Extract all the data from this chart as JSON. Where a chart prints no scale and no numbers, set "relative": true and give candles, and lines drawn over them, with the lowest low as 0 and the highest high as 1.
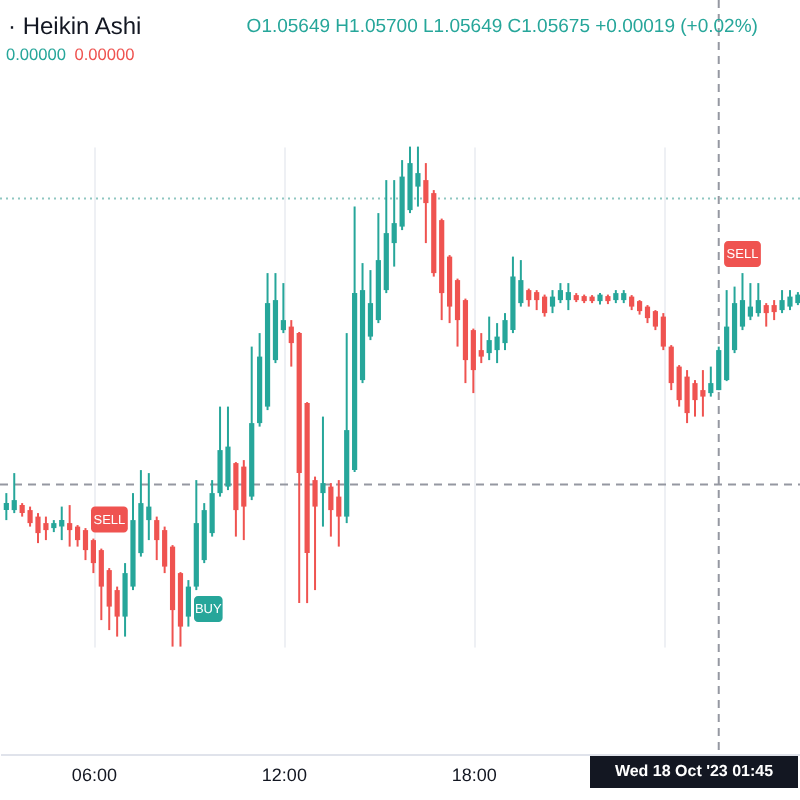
{
  "chart_data": {
    "type": "candlestick",
    "relative": true,
    "title": "· Heikin Ashi",
    "x": [
      "2023-10-17T03:15",
      "2023-10-17T03:30",
      "2023-10-17T03:45",
      "2023-10-17T04:00",
      "2023-10-17T04:15",
      "2023-10-17T04:30",
      "2023-10-17T04:45",
      "2023-10-17T05:00",
      "2023-10-17T05:15",
      "2023-10-17T05:30",
      "2023-10-17T05:45",
      "2023-10-17T06:00",
      "2023-10-17T06:15",
      "2023-10-17T06:30",
      "2023-10-17T06:45",
      "2023-10-17T07:00",
      "2023-10-17T07:15",
      "2023-10-17T07:30",
      "2023-10-17T07:45",
      "2023-10-17T08:00",
      "2023-10-17T08:15",
      "2023-10-17T08:30",
      "2023-10-17T08:45",
      "2023-10-17T09:00",
      "2023-10-17T09:15",
      "2023-10-17T09:30",
      "2023-10-17T09:45",
      "2023-10-17T10:00",
      "2023-10-17T10:15",
      "2023-10-17T10:30",
      "2023-10-17T10:45",
      "2023-10-17T11:00",
      "2023-10-17T11:15",
      "2023-10-17T11:30",
      "2023-10-17T11:45",
      "2023-10-17T12:00",
      "2023-10-17T12:15",
      "2023-10-17T12:30",
      "2023-10-17T12:45",
      "2023-10-17T13:00",
      "2023-10-17T13:15",
      "2023-10-17T13:30",
      "2023-10-17T13:45",
      "2023-10-17T14:00",
      "2023-10-17T14:15",
      "2023-10-17T14:30",
      "2023-10-17T14:45",
      "2023-10-17T15:00",
      "2023-10-17T15:15",
      "2023-10-17T15:30",
      "2023-10-17T15:45",
      "2023-10-17T16:00",
      "2023-10-17T16:15",
      "2023-10-17T16:30",
      "2023-10-17T16:45",
      "2023-10-17T17:00",
      "2023-10-17T17:15",
      "2023-10-17T17:30",
      "2023-10-17T17:45",
      "2023-10-17T18:00",
      "2023-10-17T18:15",
      "2023-10-17T18:30",
      "2023-10-17T18:45",
      "2023-10-17T19:00",
      "2023-10-17T19:15",
      "2023-10-17T19:30",
      "2023-10-17T19:45",
      "2023-10-17T20:00",
      "2023-10-17T20:15",
      "2023-10-17T20:30",
      "2023-10-17T20:45",
      "2023-10-17T21:00",
      "2023-10-17T21:15",
      "2023-10-17T21:30",
      "2023-10-17T21:45",
      "2023-10-17T22:00",
      "2023-10-17T22:15",
      "2023-10-17T22:30",
      "2023-10-17T22:45",
      "2023-10-17T23:00",
      "2023-10-17T23:15",
      "2023-10-17T23:30",
      "2023-10-17T23:45",
      "2023-10-18T00:00",
      "2023-10-18T00:15",
      "2023-10-18T00:30",
      "2023-10-18T00:45",
      "2023-10-18T01:00",
      "2023-10-18T01:15",
      "2023-10-18T01:30",
      "2023-10-18T01:45",
      "2023-10-18T02:00",
      "2023-10-18T02:15",
      "2023-10-18T02:30",
      "2023-10-18T02:45",
      "2023-10-18T03:00",
      "2023-10-18T03:15",
      "2023-10-18T03:30",
      "2023-10-18T03:45",
      "2023-10-18T04:00",
      "2023-10-18T04:15"
    ],
    "ohlc": [
      [
        0.273,
        0.307,
        0.253,
        0.287
      ],
      [
        0.273,
        0.347,
        0.267,
        0.293
      ],
      [
        0.283,
        0.287,
        0.26,
        0.267
      ],
      [
        0.273,
        0.28,
        0.24,
        0.247
      ],
      [
        0.26,
        0.267,
        0.207,
        0.227
      ],
      [
        0.247,
        0.26,
        0.213,
        0.233
      ],
      [
        0.237,
        0.253,
        0.229,
        0.247
      ],
      [
        0.24,
        0.28,
        0.213,
        0.253
      ],
      [
        0.247,
        0.283,
        0.2,
        0.233
      ],
      [
        0.24,
        0.243,
        0.2,
        0.213
      ],
      [
        0.233,
        0.237,
        0.173,
        0.193
      ],
      [
        0.213,
        0.216,
        0.147,
        0.167
      ],
      [
        0.193,
        0.196,
        0.053,
        0.12
      ],
      [
        0.153,
        0.157,
        0.033,
        0.08
      ],
      [
        0.113,
        0.12,
        0.02,
        0.06
      ],
      [
        0.06,
        0.167,
        0.02,
        0.147
      ],
      [
        0.12,
        0.307,
        0.113,
        0.253
      ],
      [
        0.187,
        0.353,
        0.18,
        0.287
      ],
      [
        0.253,
        0.347,
        0.213,
        0.28
      ],
      [
        0.253,
        0.26,
        0.173,
        0.213
      ],
      [
        0.233,
        0.24,
        0.147,
        0.16
      ],
      [
        0.2,
        0.203,
        0,
        0.073
      ],
      [
        0.147,
        0.149,
        0,
        0.04
      ],
      [
        0.06,
        0.133,
        0.04,
        0.12
      ],
      [
        0.12,
        0.333,
        0.113,
        0.247
      ],
      [
        0.173,
        0.287,
        0.167,
        0.273
      ],
      [
        0.227,
        0.333,
        0.22,
        0.307
      ],
      [
        0.307,
        0.48,
        0.3,
        0.393
      ],
      [
        0.32,
        0.48,
        0.313,
        0.4
      ],
      [
        0.367,
        0.369,
        0.22,
        0.273
      ],
      [
        0.36,
        0.373,
        0.213,
        0.28
      ],
      [
        0.3,
        0.6,
        0.293,
        0.447
      ],
      [
        0.447,
        0.627,
        0.44,
        0.58
      ],
      [
        0.48,
        0.747,
        0.473,
        0.687
      ],
      [
        0.573,
        0.747,
        0.567,
        0.693
      ],
      [
        0.633,
        0.727,
        0.627,
        0.653
      ],
      [
        0.64,
        0.653,
        0.56,
        0.607
      ],
      [
        0.627,
        0.629,
        0.087,
        0.347
      ],
      [
        0.487,
        0.489,
        0.087,
        0.187
      ],
      [
        0.333,
        0.34,
        0.113,
        0.28
      ],
      [
        0.307,
        0.46,
        0.24,
        0.327
      ],
      [
        0.32,
        0.327,
        0.22,
        0.273
      ],
      [
        0.3,
        0.333,
        0.2,
        0.26
      ],
      [
        0.26,
        0.627,
        0.247,
        0.433
      ],
      [
        0.353,
        0.88,
        0.349,
        0.707
      ],
      [
        0.533,
        0.767,
        0.527,
        0.713
      ],
      [
        0.62,
        0.753,
        0.613,
        0.687
      ],
      [
        0.653,
        0.867,
        0.647,
        0.773
      ],
      [
        0.713,
        0.933,
        0.707,
        0.827
      ],
      [
        0.807,
        0.933,
        0.76,
        0.847
      ],
      [
        0.84,
        0.973,
        0.833,
        0.94
      ],
      [
        0.873,
        1,
        0.867,
        0.967
      ],
      [
        0.92,
        1,
        0.88,
        0.947
      ],
      [
        0.933,
        0.967,
        0.807,
        0.887
      ],
      [
        0.907,
        0.913,
        0.74,
        0.747
      ],
      [
        0.853,
        0.856,
        0.653,
        0.707
      ],
      [
        0.78,
        0.783,
        0.647,
        0.68
      ],
      [
        0.733,
        0.736,
        0.6,
        0.653
      ],
      [
        0.693,
        0.696,
        0.527,
        0.573
      ],
      [
        0.633,
        0.636,
        0.507,
        0.553
      ],
      [
        0.593,
        0.627,
        0.567,
        0.58
      ],
      [
        0.587,
        0.66,
        0.573,
        0.613
      ],
      [
        0.593,
        0.647,
        0.567,
        0.62
      ],
      [
        0.607,
        0.667,
        0.593,
        0.653
      ],
      [
        0.633,
        0.78,
        0.627,
        0.74
      ],
      [
        0.687,
        0.773,
        0.68,
        0.733
      ],
      [
        0.713,
        0.716,
        0.68,
        0.693
      ],
      [
        0.709,
        0.713,
        0.673,
        0.693
      ],
      [
        0.7,
        0.704,
        0.66,
        0.667
      ],
      [
        0.68,
        0.713,
        0.667,
        0.7
      ],
      [
        0.693,
        0.727,
        0.687,
        0.713
      ],
      [
        0.693,
        0.727,
        0.673,
        0.709
      ],
      [
        0.703,
        0.707,
        0.689,
        0.693
      ],
      [
        0.701,
        0.704,
        0.687,
        0.691
      ],
      [
        0.7,
        0.703,
        0.687,
        0.691
      ],
      [
        0.691,
        0.707,
        0.684,
        0.704
      ],
      [
        0.701,
        0.704,
        0.685,
        0.691
      ],
      [
        0.693,
        0.713,
        0.687,
        0.707
      ],
      [
        0.693,
        0.713,
        0.687,
        0.707
      ],
      [
        0.7,
        0.703,
        0.673,
        0.68
      ],
      [
        0.691,
        0.693,
        0.664,
        0.671
      ],
      [
        0.68,
        0.683,
        0.647,
        0.657
      ],
      [
        0.671,
        0.673,
        0.633,
        0.64
      ],
      [
        0.66,
        0.667,
        0.593,
        0.6
      ],
      [
        0.6,
        0.603,
        0.513,
        0.527
      ],
      [
        0.56,
        0.563,
        0.48,
        0.493
      ],
      [
        0.54,
        0.553,
        0.447,
        0.467
      ],
      [
        0.527,
        0.533,
        0.46,
        0.493
      ],
      [
        0.513,
        0.553,
        0.46,
        0.5
      ],
      [
        0.507,
        0.56,
        0.5,
        0.527
      ],
      [
        0.513,
        0.6,
        0.513,
        0.593
      ],
      [
        0.533,
        0.713,
        0.531,
        0.64
      ],
      [
        0.593,
        0.72,
        0.587,
        0.687
      ],
      [
        0.64,
        0.747,
        0.633,
        0.693
      ],
      [
        0.66,
        0.727,
        0.653,
        0.68
      ],
      [
        0.667,
        0.727,
        0.66,
        0.693
      ],
      [
        0.683,
        0.687,
        0.64,
        0.667
      ],
      [
        0.683,
        0.693,
        0.653,
        0.669
      ],
      [
        0.673,
        0.713,
        0.667,
        0.693
      ],
      [
        0.68,
        0.713,
        0.673,
        0.7
      ],
      [
        0.687,
        0.709,
        0.683,
        0.704
      ]
    ],
    "colors": [
      "#26a69a",
      "#26a69a",
      "#ef5350",
      "#ef5350",
      "#ef5350",
      "#ef5350",
      "#26a69a",
      "#26a69a",
      "#ef5350",
      "#ef5350",
      "#ef5350",
      "#ef5350",
      "#ef5350",
      "#ef5350",
      "#ef5350",
      "#26a69a",
      "#26a69a",
      "#26a69a",
      "#26a69a",
      "#ef5350",
      "#ef5350",
      "#ef5350",
      "#ef5350",
      "#26a69a",
      "#26a69a",
      "#26a69a",
      "#26a69a",
      "#26a69a",
      "#26a69a",
      "#ef5350",
      "#ef5350",
      "#26a69a",
      "#26a69a",
      "#26a69a",
      "#26a69a",
      "#26a69a",
      "#ef5350",
      "#ef5350",
      "#ef5350",
      "#ef5350",
      "#26a69a",
      "#ef5350",
      "#ef5350",
      "#26a69a",
      "#26a69a",
      "#26a69a",
      "#26a69a",
      "#26a69a",
      "#26a69a",
      "#26a69a",
      "#26a69a",
      "#26a69a",
      "#26a69a",
      "#ef5350",
      "#ef5350",
      "#ef5350",
      "#ef5350",
      "#ef5350",
      "#ef5350",
      "#ef5350",
      "#ef5350",
      "#26a69a",
      "#26a69a",
      "#26a69a",
      "#26a69a",
      "#26a69a",
      "#ef5350",
      "#ef5350",
      "#ef5350",
      "#26a69a",
      "#26a69a",
      "#26a69a",
      "#ef5350",
      "#ef5350",
      "#ef5350",
      "#26a69a",
      "#ef5350",
      "#26a69a",
      "#26a69a",
      "#ef5350",
      "#ef5350",
      "#ef5350",
      "#ef5350",
      "#ef5350",
      "#ef5350",
      "#ef5350",
      "#ef5350",
      "#ef5350",
      "#ef5350",
      "#26a69a",
      "#26a69a",
      "#26a69a",
      "#26a69a",
      "#26a69a",
      "#26a69a",
      "#26a69a",
      "#ef5350",
      "#ef5350",
      "#26a69a",
      "#26a69a",
      "#26a69a"
    ],
    "xlim": [
      "2023-10-17T03:03",
      "2023-10-18T04:19"
    ],
    "xticks": [
      {
        "value": "2023-10-17T06:00",
        "label": "06:00"
      },
      {
        "value": "2023-10-17T12:00",
        "label": "12:00"
      },
      {
        "value": "2023-10-17T18:00",
        "label": "18:00"
      },
      {
        "value": "2023-10-18T00:00",
        "label": null
      }
    ],
    "grid": "x",
    "ref_lines": [
      {
        "axis": "x",
        "value": "2023-10-18T01:45",
        "label": "Wed 18 Oct '23 01:45",
        "color": "#9598a1",
        "line_style": "dashed"
      },
      {
        "axis": "y",
        "value": 0.324,
        "color": "#9598a1",
        "line_style": "dashed"
      },
      {
        "axis": "y",
        "value": 0.896,
        "color": "#8fc7c1",
        "line_style": "dotted"
      }
    ],
    "annotations": [
      "O1.05649 H1.05700 L1.05649 C1.05675 +0.00019 (+0.02%)",
      "0.00000",
      "0.00000",
      {
        "text": "SELL",
        "x": "2023-10-17T06:00",
        "y": 0.216
      },
      {
        "text": "BUY",
        "x": "2023-10-17T09:15",
        "y": 0.113
      },
      {
        "text": "SELL",
        "x": "2023-10-18T02:30",
        "y": 0.747
      }
    ]
  }
}
